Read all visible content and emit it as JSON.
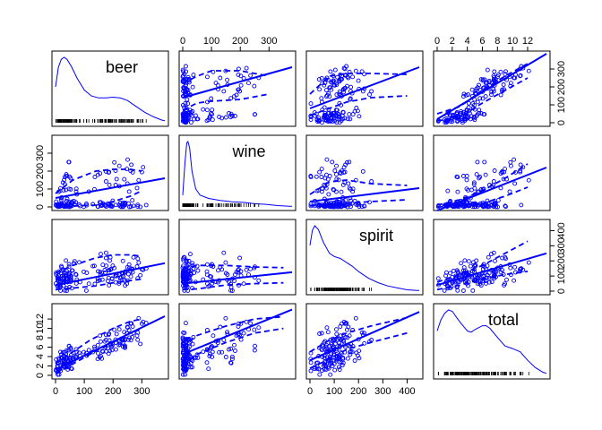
{
  "colors": {
    "accent": "#0000FF",
    "frame": "#000000",
    "rug": "#000000",
    "background": "#FFFFFF"
  },
  "chart_data": {
    "type": "scatter",
    "subtype": "scatterplot-matrix",
    "variables": [
      {
        "name": "beer",
        "label": "beer",
        "range": [
          0,
          380
        ],
        "ticks": [
          "0",
          "100",
          "200",
          "300"
        ],
        "tick_values": [
          0,
          100,
          200,
          300
        ]
      },
      {
        "name": "wine",
        "label": "wine",
        "range": [
          0,
          380
        ],
        "ticks": [
          "0",
          "100",
          "200",
          "300"
        ],
        "tick_values": [
          0,
          100,
          200,
          300
        ]
      },
      {
        "name": "spirit",
        "label": "spirit",
        "range": [
          0,
          450
        ],
        "ticks": [
          "0",
          "100",
          "200",
          "300",
          "400"
        ],
        "tick_values": [
          0,
          100,
          200,
          300,
          400
        ]
      },
      {
        "name": "total",
        "label": "total",
        "range": [
          0,
          14.5
        ],
        "ticks": [
          "0",
          "2",
          "4",
          "6",
          "8",
          "10",
          "12"
        ],
        "tick_values": [
          0,
          2,
          4,
          6,
          8,
          10,
          12
        ]
      }
    ],
    "axes": {
      "top": {
        "beer": false,
        "wine": true,
        "spirit": false,
        "total": true
      },
      "bottom": {
        "beer": true,
        "wine": false,
        "spirit": true,
        "total": false
      },
      "left": {
        "beer": false,
        "wine": true,
        "spirit": false,
        "total": true
      },
      "right": {
        "beer": true,
        "wine": false,
        "spirit": true,
        "total": false
      }
    },
    "diagonal": "density-with-rug",
    "density_curves": {
      "beer": [
        [
          0,
          0.55
        ],
        [
          10,
          0.85
        ],
        [
          20,
          0.97
        ],
        [
          30,
          1.0
        ],
        [
          40,
          0.97
        ],
        [
          55,
          0.86
        ],
        [
          75,
          0.68
        ],
        [
          100,
          0.5
        ],
        [
          125,
          0.41
        ],
        [
          150,
          0.38
        ],
        [
          175,
          0.38
        ],
        [
          200,
          0.39
        ],
        [
          225,
          0.38
        ],
        [
          250,
          0.34
        ],
        [
          280,
          0.25
        ],
        [
          310,
          0.16
        ],
        [
          340,
          0.09
        ],
        [
          370,
          0.04
        ],
        [
          380,
          0.03
        ]
      ],
      "wine": [
        [
          0,
          0.18
        ],
        [
          8,
          0.7
        ],
        [
          14,
          0.98
        ],
        [
          18,
          1.0
        ],
        [
          24,
          0.9
        ],
        [
          32,
          0.55
        ],
        [
          45,
          0.28
        ],
        [
          60,
          0.18
        ],
        [
          90,
          0.13
        ],
        [
          130,
          0.1
        ],
        [
          170,
          0.08
        ],
        [
          210,
          0.07
        ],
        [
          250,
          0.05
        ],
        [
          290,
          0.04
        ],
        [
          330,
          0.02
        ],
        [
          370,
          0.01
        ],
        [
          380,
          0.01
        ]
      ],
      "spirit": [
        [
          0,
          0.7
        ],
        [
          10,
          0.93
        ],
        [
          20,
          1.0
        ],
        [
          35,
          0.94
        ],
        [
          55,
          0.75
        ],
        [
          80,
          0.58
        ],
        [
          100,
          0.53
        ],
        [
          125,
          0.5
        ],
        [
          150,
          0.44
        ],
        [
          175,
          0.38
        ],
        [
          200,
          0.3
        ],
        [
          240,
          0.2
        ],
        [
          280,
          0.13
        ],
        [
          320,
          0.08
        ],
        [
          360,
          0.05
        ],
        [
          400,
          0.02
        ],
        [
          440,
          0.01
        ],
        [
          450,
          0.01
        ]
      ],
      "total": [
        [
          0,
          0.68
        ],
        [
          0.5,
          0.85
        ],
        [
          1,
          0.95
        ],
        [
          1.5,
          1.0
        ],
        [
          2,
          0.98
        ],
        [
          3,
          0.82
        ],
        [
          4,
          0.68
        ],
        [
          4.5,
          0.66
        ],
        [
          5,
          0.7
        ],
        [
          6,
          0.76
        ],
        [
          6.5,
          0.76
        ],
        [
          7,
          0.72
        ],
        [
          8,
          0.58
        ],
        [
          9,
          0.45
        ],
        [
          10,
          0.41
        ],
        [
          11,
          0.36
        ],
        [
          12,
          0.23
        ],
        [
          13,
          0.12
        ],
        [
          14,
          0.05
        ],
        [
          14.5,
          0.03
        ]
      ]
    },
    "smoothers": {
      "wine~beer": {
        "linear": [
          [
            0,
            50
          ],
          [
            380,
            160
          ]
        ],
        "upper": [
          [
            0,
            75
          ],
          [
            60,
            150
          ],
          [
            140,
            200
          ],
          [
            200,
            210
          ],
          [
            260,
            210
          ],
          [
            300,
            200
          ]
        ],
        "lower": [
          [
            0,
            20
          ],
          [
            60,
            5
          ],
          [
            140,
            10
          ],
          [
            200,
            30
          ],
          [
            260,
            60
          ],
          [
            300,
            90
          ]
        ]
      },
      "spirit~beer": {
        "linear": [
          [
            0,
            40
          ],
          [
            380,
            185
          ]
        ],
        "upper": [
          [
            0,
            120
          ],
          [
            60,
            170
          ],
          [
            140,
            220
          ],
          [
            200,
            240
          ],
          [
            260,
            240
          ],
          [
            300,
            230
          ]
        ],
        "lower": [
          [
            0,
            10
          ],
          [
            60,
            20
          ],
          [
            140,
            35
          ],
          [
            200,
            55
          ],
          [
            260,
            70
          ],
          [
            300,
            80
          ]
        ]
      },
      "total~beer": {
        "linear": [
          [
            0,
            1.2
          ],
          [
            380,
            12.6
          ]
        ],
        "upper": [
          [
            0,
            2.5
          ],
          [
            60,
            5
          ],
          [
            120,
            7.5
          ],
          [
            200,
            10
          ],
          [
            260,
            11.5
          ],
          [
            300,
            12
          ]
        ],
        "lower": [
          [
            0,
            0.3
          ],
          [
            60,
            2.4
          ],
          [
            120,
            4.5
          ],
          [
            200,
            7
          ],
          [
            260,
            9
          ],
          [
            300,
            10
          ]
        ]
      },
      "beer~wine": {
        "linear": [
          [
            0,
            140
          ],
          [
            380,
            310
          ]
        ],
        "upper": [
          [
            0,
            220
          ],
          [
            50,
            260
          ],
          [
            100,
            290
          ],
          [
            200,
            290
          ],
          [
            300,
            260
          ]
        ],
        "lower": [
          [
            0,
            70
          ],
          [
            50,
            110
          ],
          [
            100,
            120
          ],
          [
            200,
            130
          ],
          [
            300,
            160
          ]
        ]
      },
      "spirit~wine": {
        "linear": [
          [
            0,
            50
          ],
          [
            380,
            125
          ]
        ],
        "upper": [
          [
            0,
            150
          ],
          [
            50,
            170
          ],
          [
            150,
            170
          ],
          [
            250,
            160
          ],
          [
            350,
            155
          ]
        ],
        "lower": [
          [
            0,
            10
          ],
          [
            50,
            15
          ],
          [
            150,
            40
          ],
          [
            250,
            50
          ],
          [
            350,
            55
          ]
        ]
      },
      "total~wine": {
        "linear": [
          [
            0,
            4.5
          ],
          [
            380,
            14
          ]
        ],
        "upper": [
          [
            0,
            6
          ],
          [
            50,
            8.5
          ],
          [
            150,
            10.5
          ],
          [
            250,
            12
          ],
          [
            350,
            12.5
          ]
        ],
        "lower": [
          [
            0,
            2
          ],
          [
            50,
            4.5
          ],
          [
            150,
            7
          ],
          [
            250,
            9
          ],
          [
            350,
            10
          ]
        ]
      },
      "beer~spirit": {
        "linear": [
          [
            0,
            80
          ],
          [
            450,
            310
          ]
        ],
        "upper": [
          [
            0,
            160
          ],
          [
            80,
            260
          ],
          [
            150,
            275
          ],
          [
            250,
            275
          ],
          [
            400,
            270
          ]
        ],
        "lower": [
          [
            0,
            40
          ],
          [
            80,
            80
          ],
          [
            150,
            115
          ],
          [
            250,
            140
          ],
          [
            400,
            150
          ]
        ]
      },
      "wine~spirit": {
        "linear": [
          [
            0,
            30
          ],
          [
            450,
            105
          ]
        ],
        "upper": [
          [
            0,
            70
          ],
          [
            80,
            140
          ],
          [
            150,
            150
          ],
          [
            250,
            130
          ],
          [
            400,
            120
          ]
        ],
        "lower": [
          [
            0,
            5
          ],
          [
            80,
            15
          ],
          [
            150,
            20
          ],
          [
            250,
            30
          ],
          [
            400,
            40
          ]
        ]
      },
      "total~spirit": {
        "linear": [
          [
            0,
            3.2
          ],
          [
            450,
            13.5
          ]
        ],
        "upper": [
          [
            0,
            5
          ],
          [
            80,
            7.5
          ],
          [
            150,
            9
          ],
          [
            250,
            10.5
          ],
          [
            400,
            12.3
          ]
        ],
        "lower": [
          [
            0,
            1.5
          ],
          [
            80,
            3.5
          ],
          [
            150,
            5.5
          ],
          [
            250,
            7
          ],
          [
            400,
            9
          ]
        ]
      },
      "beer~total": {
        "linear": [
          [
            0,
            20
          ],
          [
            14.5,
            385
          ]
        ],
        "upper": [
          [
            0,
            50
          ],
          [
            3,
            90
          ],
          [
            6,
            180
          ],
          [
            9,
            260
          ],
          [
            12,
            330
          ]
        ],
        "lower": [
          [
            0,
            10
          ],
          [
            3,
            30
          ],
          [
            6,
            110
          ],
          [
            9,
            180
          ],
          [
            12,
            250
          ]
        ]
      },
      "wine~total": {
        "linear": [
          [
            0,
            -20
          ],
          [
            14.5,
            220
          ]
        ],
        "upper": [
          [
            0,
            10
          ],
          [
            3,
            40
          ],
          [
            6,
            90
          ],
          [
            9,
            160
          ],
          [
            12,
            240
          ]
        ],
        "lower": [
          [
            0,
            0
          ],
          [
            3,
            5
          ],
          [
            6,
            20
          ],
          [
            9,
            60
          ],
          [
            12,
            110
          ]
        ]
      },
      "spirit~total": {
        "linear": [
          [
            0,
            40
          ],
          [
            14.5,
            250
          ]
        ],
        "upper": [
          [
            0,
            60
          ],
          [
            3,
            110
          ],
          [
            6,
            170
          ],
          [
            9,
            250
          ],
          [
            12,
            330
          ]
        ],
        "lower": [
          [
            0,
            10
          ],
          [
            3,
            40
          ],
          [
            6,
            80
          ],
          [
            9,
            110
          ],
          [
            12,
            130
          ]
        ]
      }
    },
    "legend": "none",
    "grid": false
  }
}
